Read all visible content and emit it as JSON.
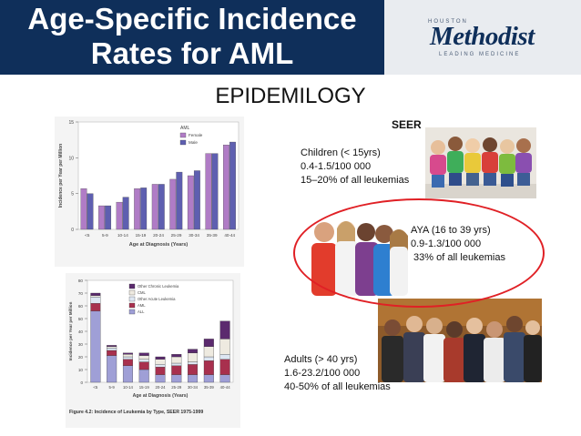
{
  "header": {
    "title_line1": "Age-Specific Incidence",
    "title_line2": "Rates for AML",
    "logo": {
      "top": "HOUSTON",
      "name": "Methodist",
      "tagline": "LEADING MEDICINE"
    }
  },
  "section_title": "EPIDEMILOGY",
  "seer_label": "SEER",
  "groups": [
    {
      "line1": "Children (< 15yrs)",
      "line2": "0.4-1.5/100 000",
      "line3": "15–20% of all leukemias"
    },
    {
      "line1": "AYA (16 to 39 yrs)",
      "line2": "0.9-1.3/100 000",
      "line3": " 33% of all leukemias"
    },
    {
      "line1": "Adults (> 40 yrs)",
      "line2": "1.6-23.2/100 000",
      "line3": "40-50% of all leukemias"
    }
  ],
  "colors": {
    "title_band": "#0f2f5a",
    "female": "#b07cc6",
    "male": "#5e5fb0",
    "oval": "#e02025"
  },
  "chart_data": [
    {
      "type": "bar",
      "categories": [
        "<5",
        "5-9",
        "10-14",
        "15-19",
        "20-24",
        "25-29",
        "30-34",
        "35-39",
        "40-44"
      ],
      "series": [
        {
          "name": "Female",
          "values": [
            5.7,
            3.3,
            3.8,
            5.7,
            6.3,
            7.0,
            7.5,
            10.6,
            11.8
          ]
        },
        {
          "name": "Male",
          "values": [
            5.0,
            3.3,
            4.5,
            5.8,
            6.3,
            8.0,
            8.2,
            10.6,
            12.2
          ]
        }
      ],
      "legend_title": "AML",
      "xlabel": "Age at Diagnosis (Years)",
      "ylabel": "Incidence per Year per Million",
      "yticks": [
        "0",
        "5",
        "10",
        "15"
      ],
      "ylim": [
        0,
        15
      ],
      "legend": "top-right"
    },
    {
      "type": "bar",
      "stacked": true,
      "categories": [
        "<5",
        "5-9",
        "10-14",
        "15-19",
        "20-24",
        "25-29",
        "30-34",
        "35-39",
        "40-44"
      ],
      "series": [
        {
          "name": "ALL",
          "values": [
            56,
            21,
            13,
            10,
            6,
            6,
            6,
            6,
            6
          ]
        },
        {
          "name": "AML",
          "values": [
            6,
            4,
            5,
            6,
            6,
            7,
            8,
            11,
            12
          ]
        },
        {
          "name": "Other Acute Leukemia",
          "values": [
            5,
            2,
            2,
            2,
            2,
            2,
            2,
            3,
            4
          ]
        },
        {
          "name": "CML",
          "values": [
            1,
            1,
            2,
            3,
            4,
            5,
            7,
            8,
            12
          ]
        },
        {
          "name": "Other Chronic Leukemia",
          "values": [
            2,
            1,
            1,
            2,
            2,
            2,
            3,
            6,
            14
          ]
        }
      ],
      "xlabel": "Age at Diagnosis (Years)",
      "ylabel": "Incidence per Year per Million",
      "yticks": [
        "0",
        "10",
        "20",
        "30",
        "40",
        "50",
        "60",
        "70",
        "80"
      ],
      "ylim": [
        0,
        80
      ],
      "caption": "Figure 4.2: Incidence of Leukemia by Type, SEER 1975-1999",
      "legend": "top-right"
    }
  ]
}
